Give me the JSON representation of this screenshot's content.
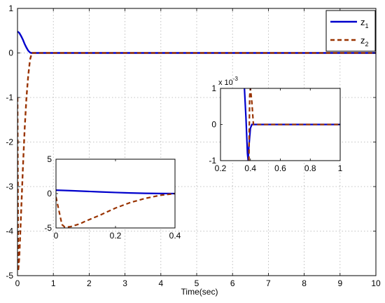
{
  "chart_data": [
    {
      "type": "line",
      "xlabel": "Time(sec)",
      "ylabel": "",
      "xlim": [
        0,
        10
      ],
      "ylim": [
        -5,
        1
      ],
      "xticks": [
        0,
        1,
        2,
        3,
        4,
        5,
        6,
        7,
        8,
        9,
        10
      ],
      "yticks": [
        -5,
        -4,
        -3,
        -2,
        -1,
        0,
        1
      ],
      "grid": true,
      "legend_position": "top-right",
      "series": [
        {
          "name": "z_1",
          "color": "#0000cc",
          "style": "solid",
          "x": [
            0,
            0.05,
            0.1,
            0.15,
            0.2,
            0.25,
            0.3,
            0.35,
            0.38,
            0.4,
            1,
            2,
            3,
            4,
            5,
            6,
            7,
            8,
            9,
            10
          ],
          "y": [
            0.48,
            0.45,
            0.38,
            0.3,
            0.2,
            0.12,
            0.05,
            0.01,
            0,
            0,
            0,
            0,
            0,
            0,
            0,
            0,
            0,
            0,
            0,
            0
          ]
        },
        {
          "name": "z_2",
          "color": "#993300",
          "style": "dashed",
          "x": [
            0,
            0.02,
            0.05,
            0.1,
            0.15,
            0.2,
            0.25,
            0.3,
            0.35,
            0.4,
            1,
            2,
            3,
            4,
            5,
            6,
            7,
            8,
            9,
            10
          ],
          "y": [
            -1,
            -4.9,
            -4.6,
            -3.6,
            -2.6,
            -1.7,
            -1.0,
            -0.5,
            -0.15,
            0,
            0,
            0,
            0,
            0,
            0,
            0,
            0,
            0,
            0,
            0
          ]
        }
      ]
    },
    {
      "type": "line",
      "xlim": [
        0,
        0.4
      ],
      "ylim": [
        -5,
        5
      ],
      "xticks": [
        0,
        0.2,
        0.4
      ],
      "yticks": [
        -5,
        0,
        5
      ],
      "series": [
        {
          "name": "z_1",
          "color": "#0000cc",
          "style": "solid",
          "x": [
            0,
            0.05,
            0.1,
            0.15,
            0.2,
            0.25,
            0.3,
            0.35,
            0.4
          ],
          "y": [
            0.5,
            0.42,
            0.33,
            0.24,
            0.16,
            0.09,
            0.04,
            0.01,
            0
          ]
        },
        {
          "name": "z_2",
          "color": "#993300",
          "style": "dashed",
          "x": [
            0,
            0.01,
            0.02,
            0.03,
            0.05,
            0.08,
            0.1,
            0.15,
            0.2,
            0.25,
            0.3,
            0.35,
            0.4
          ],
          "y": [
            -0.5,
            -2.5,
            -4.5,
            -4.9,
            -4.8,
            -4.4,
            -4.0,
            -3.1,
            -2.1,
            -1.3,
            -0.7,
            -0.25,
            0
          ]
        }
      ]
    },
    {
      "type": "line",
      "xlim": [
        0.2,
        1
      ],
      "ylim": [
        -0.001,
        0.001
      ],
      "xticks": [
        0.2,
        0.4,
        0.6,
        0.8,
        1
      ],
      "ytick_labels": [
        "-1",
        "0",
        "1"
      ],
      "yticks": [
        -0.001,
        0,
        0.001
      ],
      "exponent_label": "x 10",
      "exponent_power": "-3",
      "series": [
        {
          "name": "z_1",
          "color": "#0000cc",
          "style": "solid",
          "x": [
            0.36,
            0.37,
            0.38,
            0.385,
            0.39,
            0.4,
            0.41,
            0.42,
            1
          ],
          "y": [
            0.001,
            0.0002,
            -0.0008,
            -0.001,
            -0.0006,
            -0.0001,
            0,
            0,
            0
          ]
        },
        {
          "name": "z_2",
          "color": "#993300",
          "style": "dashed",
          "x": [
            0.39,
            0.395,
            0.4,
            0.41,
            0.42,
            1
          ],
          "y": [
            -0.001,
            0.0008,
            0.001,
            0.0006,
            0,
            0
          ]
        }
      ]
    }
  ],
  "legend": {
    "z1_base": "z",
    "z1_sub": "1",
    "z2_base": "z",
    "z2_sub": "2"
  }
}
